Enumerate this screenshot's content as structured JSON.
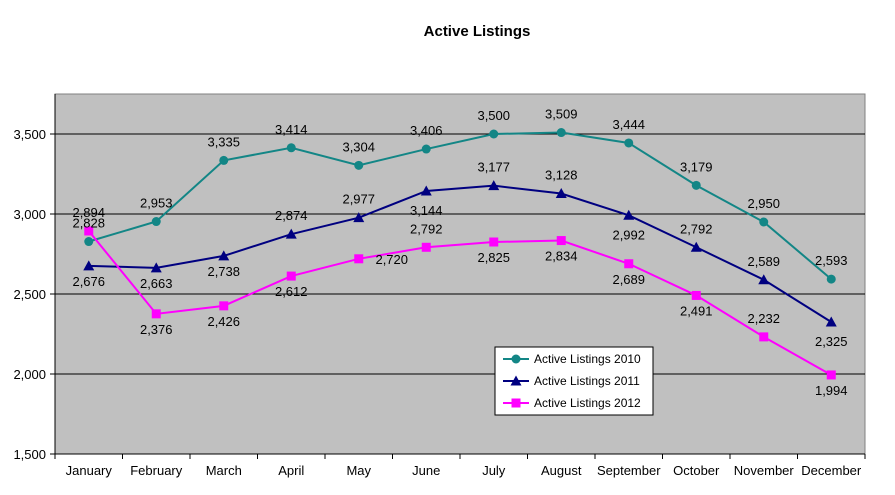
{
  "chart_data": {
    "type": "line",
    "title": "Active Listings",
    "xlabel": "",
    "ylabel": "",
    "categories": [
      "January",
      "February",
      "March",
      "April",
      "May",
      "June",
      "July",
      "August",
      "September",
      "October",
      "November",
      "December"
    ],
    "ylim": [
      1500,
      3750
    ],
    "yticks": [
      1500,
      2000,
      2500,
      3000,
      3500
    ],
    "ytick_labels": [
      "1,500",
      "2,000",
      "2,500",
      "3,000",
      "3,500"
    ],
    "grid": true,
    "legend_position": "lower-right",
    "series": [
      {
        "name": "Active Listings 2010",
        "color": "#138686",
        "marker": "circle",
        "values": [
          2828,
          2953,
          3335,
          3414,
          3304,
          3406,
          3500,
          3509,
          3444,
          3179,
          2950,
          2593
        ],
        "labels": [
          "2,828",
          "2,953",
          "3,335",
          "3,414",
          "3,304",
          "3,406",
          "3,500",
          "3,509",
          "3,444",
          "3,179",
          "2,950",
          "2,593"
        ]
      },
      {
        "name": "Active Listings 2011",
        "color": "#000080",
        "marker": "triangle",
        "values": [
          2676,
          2663,
          2738,
          2874,
          2977,
          3144,
          3177,
          3128,
          2992,
          2792,
          2589,
          2325
        ],
        "labels": [
          "2,676",
          "2,663",
          "2,738",
          "2,874",
          "2,977",
          "3,144",
          "3,177",
          "3,128",
          "2,992",
          "2,792",
          "2,589",
          "2,325"
        ]
      },
      {
        "name": "Active Listings 2012",
        "color": "#ff00ff",
        "marker": "square",
        "values": [
          2894,
          2376,
          2426,
          2612,
          2720,
          2792,
          2825,
          2834,
          2689,
          2491,
          2232,
          1994
        ],
        "labels": [
          "2,894",
          "2,376",
          "2,426",
          "2,612",
          "2,720",
          "2,792",
          "2,825",
          "2,834",
          "2,689",
          "2,491",
          "2,232",
          "1,994"
        ]
      }
    ]
  }
}
